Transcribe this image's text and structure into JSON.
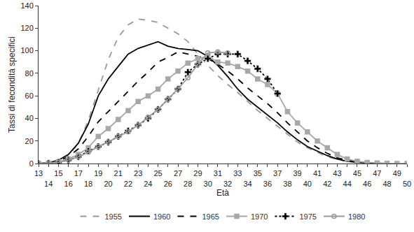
{
  "chart_data": {
    "type": "line",
    "x_label": "Età",
    "y_label": "Tassi di fecondità specifici",
    "x": [
      13,
      14,
      15,
      16,
      17,
      18,
      19,
      20,
      21,
      22,
      23,
      24,
      25,
      26,
      27,
      28,
      29,
      30,
      31,
      32,
      33,
      34,
      35,
      36,
      37,
      38,
      39,
      40,
      41,
      42,
      43,
      44,
      45,
      46,
      47,
      48,
      49,
      50
    ],
    "xlim": [
      13,
      50
    ],
    "xticks": [
      13,
      14,
      15,
      16,
      17,
      18,
      19,
      20,
      21,
      22,
      23,
      24,
      25,
      26,
      27,
      28,
      29,
      30,
      31,
      32,
      33,
      34,
      35,
      36,
      37,
      38,
      39,
      40,
      41,
      42,
      43,
      44,
      45,
      46,
      47,
      48,
      49,
      50
    ],
    "ylim": [
      0,
      140
    ],
    "yticks": [
      0,
      20,
      40,
      60,
      80,
      100,
      120,
      140
    ],
    "grid": false,
    "legend": "bottom",
    "series": [
      {
        "name": "1955",
        "color": "#9a9a9a",
        "line_style": "dash",
        "marker": "none",
        "values": [
          0,
          0.5,
          2,
          7,
          18,
          38,
          65,
          92,
          112,
          123,
          128,
          127,
          125,
          120,
          115,
          108,
          97,
          87,
          78,
          70,
          63,
          55,
          47,
          40,
          33,
          26,
          19,
          14,
          10,
          6,
          3.5,
          2,
          1,
          0.5,
          0.2,
          0.1,
          0,
          0
        ]
      },
      {
        "name": "1960",
        "color": "#000000",
        "line_style": "solid",
        "marker": "none",
        "values": [
          0,
          0.5,
          3,
          8,
          18,
          35,
          60,
          75,
          86,
          97,
          102,
          105,
          108,
          104,
          102,
          101,
          100,
          95,
          87,
          77,
          66,
          57,
          50,
          43,
          36,
          28,
          21,
          15,
          11,
          7,
          4,
          2,
          1,
          0.5,
          0.2,
          0.1,
          0,
          0
        ]
      },
      {
        "name": "1965",
        "color": "#000000",
        "line_style": "dash",
        "marker": "none",
        "values": [
          0,
          0.3,
          2,
          6,
          13,
          24,
          37,
          46,
          55,
          64,
          73,
          81,
          90,
          94,
          99,
          97,
          95,
          93,
          88,
          82,
          75,
          67,
          60,
          53,
          45,
          36,
          28,
          20,
          14,
          9,
          5,
          3,
          1.5,
          0.7,
          0.3,
          0.1,
          0,
          0
        ]
      },
      {
        "name": "1970",
        "color": "#a8a8a8",
        "line_style": "solid",
        "marker": "square",
        "values": [
          0,
          0.3,
          1.5,
          4,
          8,
          14,
          24,
          31,
          39,
          47,
          55,
          60,
          66,
          75,
          82,
          89,
          93,
          95,
          90,
          89,
          86,
          82,
          75,
          70,
          62,
          46,
          36,
          28,
          20,
          14,
          8,
          4,
          2,
          1,
          0.5,
          0.2,
          0,
          0
        ]
      },
      {
        "name": "1975",
        "color": "#000000",
        "line_style": "dot",
        "marker": "cross",
        "values": [
          0,
          0.3,
          1,
          3,
          6,
          11,
          15,
          19,
          24,
          29,
          34,
          40,
          48,
          57,
          66,
          81,
          88,
          93,
          97,
          97,
          97,
          91,
          84,
          75,
          62,
          null,
          null,
          null,
          null,
          null,
          null,
          null,
          null,
          null,
          null,
          null,
          null,
          null
        ]
      },
      {
        "name": "1980",
        "color": "#9a9a9a",
        "line_style": "solid",
        "marker": "circle-open",
        "values": [
          0,
          0.3,
          1,
          3,
          6,
          10,
          15,
          19,
          24,
          28,
          34,
          41,
          48,
          57,
          66,
          76,
          88,
          98,
          99,
          98,
          null,
          null,
          null,
          null,
          null,
          null,
          null,
          null,
          null,
          null,
          null,
          null,
          null,
          null,
          null,
          null,
          null,
          null
        ]
      }
    ]
  }
}
